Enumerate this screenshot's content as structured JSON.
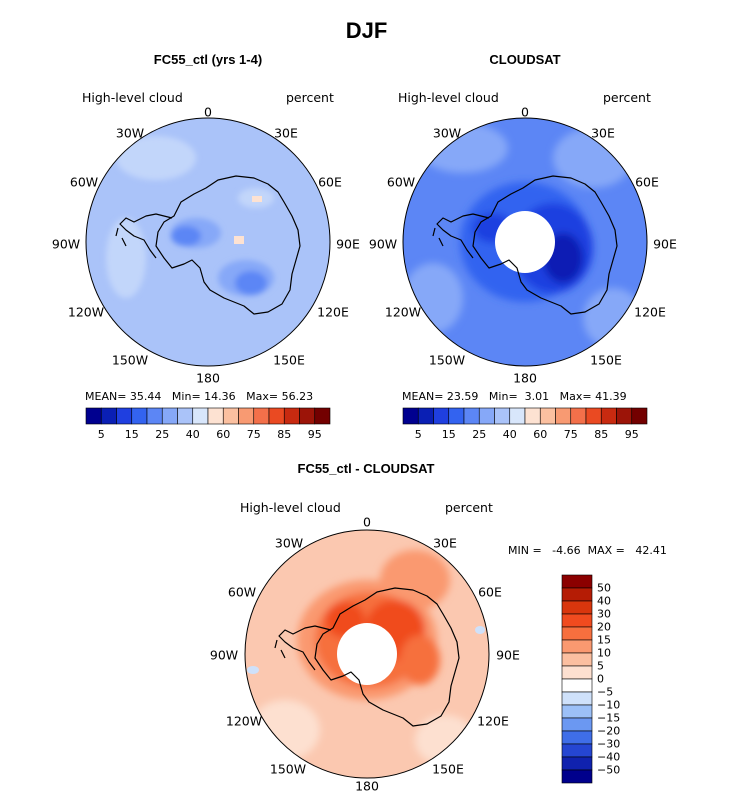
{
  "title": "DJF",
  "panels": [
    {
      "id": "left",
      "title": "FC55_ctl (yrs 1-4)",
      "header_left": "High-level cloud",
      "header_right": "percent",
      "stats": {
        "mean_label": "MEAN=",
        "mean": "35.44",
        "min_label": "Min=",
        "min": "14.36",
        "max_label": "Max=",
        "max": "56.23"
      },
      "colorbar_ticks": [
        "5",
        "15",
        "25",
        "40",
        "60",
        "75",
        "85",
        "95"
      ]
    },
    {
      "id": "right",
      "title": "CLOUDSAT",
      "header_left": "High-level cloud",
      "header_right": "percent",
      "stats": {
        "mean_label": "MEAN=",
        "mean": "23.59",
        "min_label": "Min=",
        "min": "3.01",
        "max_label": "Max=",
        "max": "41.39"
      },
      "colorbar_ticks": [
        "5",
        "15",
        "25",
        "40",
        "60",
        "75",
        "85",
        "95"
      ]
    },
    {
      "id": "diff",
      "title": "FC55_ctl - CLOUDSAT",
      "header_left": "High-level cloud",
      "header_right": "percent",
      "stats_text": "MIN =   -4.66  MAX =   42.41",
      "colorbar_ticks": [
        "50",
        "40",
        "30",
        "20",
        "15",
        "10",
        "5",
        "0",
        "−5",
        "−10",
        "−15",
        "−20",
        "−30",
        "−40",
        "−50"
      ]
    }
  ],
  "longitude_labels": [
    "0",
    "30E",
    "60E",
    "90E",
    "120E",
    "150E",
    "180",
    "150W",
    "120W",
    "90W",
    "60W",
    "30W"
  ],
  "colors": {
    "full_scale": [
      "#00008f",
      "#0a1fb4",
      "#1f3fe0",
      "#3363f0",
      "#5c86f5",
      "#86a8f8",
      "#aac3f9",
      "#d8e6fb",
      "#fde2d2",
      "#fbc0a0",
      "#f89a72",
      "#f3704a",
      "#ea4a22",
      "#c82a10",
      "#9c1408",
      "#730000"
    ],
    "diff_scale_top_to_bottom": [
      "#8b0000",
      "#b51c05",
      "#d9360d",
      "#f04b1f",
      "#f66f3e",
      "#fa9970",
      "#fbbfa0",
      "#fde0d0",
      "#ffffff",
      "#cfe1fa",
      "#9cc0f7",
      "#6b98f2",
      "#3f6ee8",
      "#2546d2",
      "#1022ae",
      "#00008c"
    ],
    "left_ocean": "#aac3f9",
    "right_ocean": "#5c86f5",
    "diff_ocean": "#fbc8b0"
  }
}
